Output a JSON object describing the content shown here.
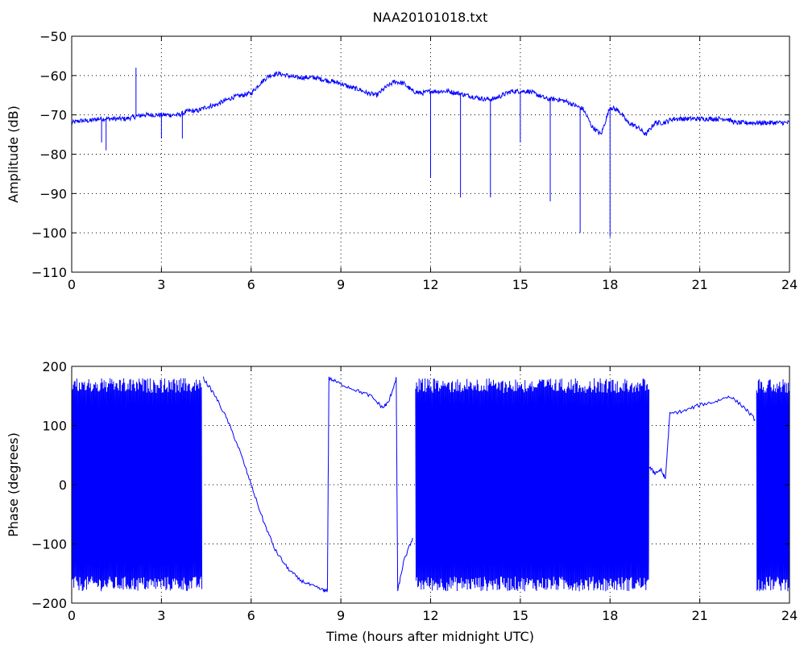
{
  "chart_data": [
    {
      "type": "line",
      "title": "NAA20101018.txt",
      "xlabel": "",
      "ylabel": "Amplitude (dB)",
      "xlim": [
        0,
        24
      ],
      "ylim": [
        -110,
        -50
      ],
      "xticks": [
        0,
        3,
        6,
        9,
        12,
        15,
        18,
        21,
        24
      ],
      "yticks": [
        -110,
        -100,
        -90,
        -80,
        -70,
        -60,
        -50
      ],
      "grid": true,
      "color": "#0000ff",
      "series": [
        {
          "x": [
            0,
            0.3,
            0.6,
            0.9,
            1.2,
            1.5,
            1.8,
            2.1,
            2.4,
            2.7,
            3.0,
            3.3,
            3.6,
            3.9,
            4.2,
            4.5,
            4.8,
            5.1,
            5.4,
            5.7,
            6.0,
            6.3,
            6.6,
            6.9,
            7.2,
            7.5,
            7.8,
            8.1,
            8.4,
            8.7,
            9.0,
            9.3,
            9.6,
            9.9,
            10.2,
            10.5,
            10.8,
            11.1,
            11.4,
            11.7,
            12.0,
            12.3,
            12.6,
            12.9,
            13.2,
            13.5,
            13.8,
            14.1,
            14.4,
            14.7,
            15.0,
            15.3,
            15.6,
            15.9,
            16.2,
            16.5,
            16.8,
            17.1,
            17.4,
            17.7,
            18.0,
            18.3,
            18.6,
            18.9,
            19.2,
            19.5,
            19.8,
            20.1,
            20.4,
            20.7,
            21.0,
            21.3,
            21.6,
            21.9,
            22.2,
            22.5,
            22.8,
            23.1,
            23.4,
            23.7,
            24.0
          ],
          "y": [
            -72,
            -71.5,
            -71.5,
            -71,
            -71,
            -71,
            -71,
            -70.5,
            -70,
            -70,
            -70,
            -70,
            -70,
            -69,
            -69,
            -68,
            -67.5,
            -66.5,
            -65.5,
            -65,
            -64.5,
            -62,
            -60,
            -59.5,
            -60,
            -60.5,
            -60.5,
            -60.5,
            -61,
            -61.5,
            -62,
            -63,
            -63.5,
            -64.5,
            -65,
            -63,
            -61.5,
            -62,
            -64,
            -64.5,
            -64,
            -64,
            -64,
            -64.5,
            -65,
            -65.5,
            -66,
            -66,
            -65,
            -64,
            -64,
            -64,
            -65,
            -66,
            -66,
            -66.5,
            -67.5,
            -68.5,
            -73,
            -75,
            -68,
            -69,
            -72,
            -73,
            -75,
            -72,
            -72,
            -71,
            -71,
            -71,
            -71,
            -71,
            -71,
            -71,
            -72,
            -72,
            -72,
            -72,
            -72,
            -72,
            -72
          ]
        }
      ],
      "spikes": [
        {
          "x": 1.0,
          "y": -77
        },
        {
          "x": 1.15,
          "y": -79
        },
        {
          "x": 2.15,
          "y": -58
        },
        {
          "x": 3.0,
          "y": -76
        },
        {
          "x": 3.7,
          "y": -76
        },
        {
          "x": 12.0,
          "y": -86
        },
        {
          "x": 13.0,
          "y": -91
        },
        {
          "x": 14.0,
          "y": -91
        },
        {
          "x": 15.0,
          "y": -77
        },
        {
          "x": 16.0,
          "y": -92
        },
        {
          "x": 17.0,
          "y": -100
        },
        {
          "x": 18.0,
          "y": -101
        }
      ]
    },
    {
      "type": "line",
      "title": "",
      "xlabel": "Time (hours after midnight UTC)",
      "ylabel": "Phase (degrees)",
      "xlim": [
        0,
        24
      ],
      "ylim": [
        -200,
        200
      ],
      "xticks": [
        0,
        3,
        6,
        9,
        12,
        15,
        18,
        21,
        24
      ],
      "yticks": [
        -200,
        -100,
        0,
        100,
        200
      ],
      "grid": true,
      "color": "#0000ff",
      "series": [
        {
          "x": [
            4.4,
            4.8,
            5.2,
            5.6,
            6.0,
            6.4,
            6.8,
            7.2,
            7.6,
            8.0,
            8.4,
            8.55,
            8.6,
            9.0,
            9.5,
            10.0,
            10.4,
            10.6,
            10.85,
            10.9,
            11.1,
            11.4
          ],
          "y": [
            180,
            150,
            110,
            60,
            0,
            -60,
            -110,
            -140,
            -160,
            -170,
            -178,
            -180,
            180,
            170,
            160,
            150,
            130,
            140,
            180,
            -180,
            -130,
            -90
          ]
        },
        {
          "x": [
            19.3,
            19.5,
            19.7,
            19.85,
            20.0,
            20.5,
            21.0,
            21.5,
            22.0,
            22.5,
            22.85
          ],
          "y": [
            30,
            20,
            25,
            10,
            120,
            125,
            135,
            140,
            150,
            130,
            110
          ]
        }
      ],
      "wrapped_segments": [
        {
          "x_start": 0.0,
          "x_end": 4.35,
          "y_min": -180,
          "y_max": 180
        },
        {
          "x_start": 11.5,
          "x_end": 19.3,
          "y_min": -180,
          "y_max": 180
        },
        {
          "x_start": 22.9,
          "x_end": 24.0,
          "y_min": -180,
          "y_max": 180
        }
      ]
    }
  ]
}
